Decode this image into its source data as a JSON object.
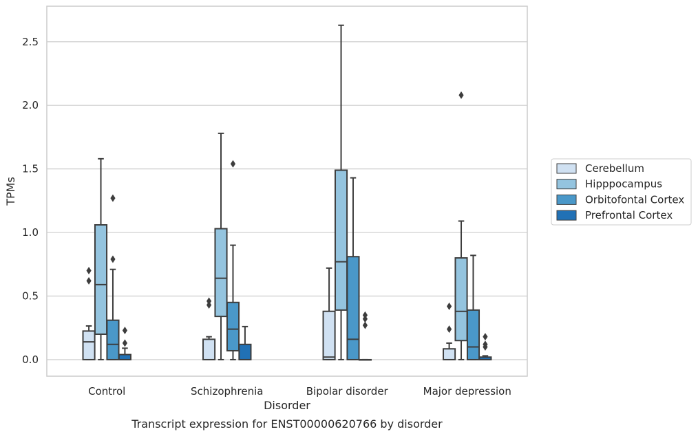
{
  "chart_data": {
    "type": "boxplot",
    "title": "Transcript expression for ENST00000620766 by disorder",
    "xlabel": "Disorder",
    "ylabel": "TPMs",
    "ylim": [
      -0.13,
      2.78
    ],
    "yticks": [
      "0.0",
      "0.5",
      "1.0",
      "1.5",
      "2.0",
      "2.5"
    ],
    "ytick_values": [
      0.0,
      0.5,
      1.0,
      1.5,
      2.0,
      2.5
    ],
    "categories": [
      "Control",
      "Schizophrenia",
      "Bipolar disorder",
      "Major depression"
    ],
    "grid": "horizontal",
    "legend_position": "right",
    "series": [
      {
        "name": "Cerebellum",
        "color": "#d0e1f2",
        "boxes": [
          {
            "whislo": 0.0,
            "q1": 0.0,
            "med": 0.14,
            "q3": 0.225,
            "whishi": 0.265,
            "fliers": [
              0.62,
              0.7
            ]
          },
          {
            "whislo": 0.0,
            "q1": 0.0,
            "med": 0.0,
            "q3": 0.16,
            "whishi": 0.18,
            "fliers": [
              0.43,
              0.46
            ]
          },
          {
            "whislo": 0.0,
            "q1": 0.0,
            "med": 0.02,
            "q3": 0.38,
            "whishi": 0.72,
            "fliers": []
          },
          {
            "whislo": 0.0,
            "q1": 0.0,
            "med": 0.0,
            "q3": 0.085,
            "whishi": 0.13,
            "fliers": [
              0.24,
              0.42
            ]
          }
        ]
      },
      {
        "name": "Hipppocampus",
        "color": "#94c4df",
        "boxes": [
          {
            "whislo": 0.0,
            "q1": 0.2,
            "med": 0.59,
            "q3": 1.06,
            "whishi": 1.58,
            "fliers": []
          },
          {
            "whislo": 0.0,
            "q1": 0.34,
            "med": 0.64,
            "q3": 1.03,
            "whishi": 1.78,
            "fliers": []
          },
          {
            "whislo": 0.0,
            "q1": 0.39,
            "med": 0.77,
            "q3": 1.49,
            "whishi": 2.63,
            "fliers": []
          },
          {
            "whislo": 0.0,
            "q1": 0.15,
            "med": 0.38,
            "q3": 0.8,
            "whishi": 1.09,
            "fliers": [
              2.08
            ]
          }
        ]
      },
      {
        "name": "Orbitofontal Cortex",
        "color": "#4a98c9",
        "boxes": [
          {
            "whislo": 0.0,
            "q1": 0.0,
            "med": 0.12,
            "q3": 0.31,
            "whishi": 0.71,
            "fliers": [
              0.79,
              1.27
            ]
          },
          {
            "whislo": 0.0,
            "q1": 0.07,
            "med": 0.24,
            "q3": 0.45,
            "whishi": 0.9,
            "fliers": [
              1.54
            ]
          },
          {
            "whislo": 0.0,
            "q1": 0.0,
            "med": 0.16,
            "q3": 0.81,
            "whishi": 1.43,
            "fliers": []
          },
          {
            "whislo": 0.0,
            "q1": 0.0,
            "med": 0.1,
            "q3": 0.39,
            "whishi": 0.82,
            "fliers": []
          }
        ]
      },
      {
        "name": "Prefrontal Cortex",
        "color": "#2171b5",
        "boxes": [
          {
            "whislo": 0.0,
            "q1": 0.0,
            "med": 0.0,
            "q3": 0.04,
            "whishi": 0.09,
            "fliers": [
              0.13,
              0.23
            ]
          },
          {
            "whislo": 0.0,
            "q1": 0.0,
            "med": 0.0,
            "q3": 0.12,
            "whishi": 0.26,
            "fliers": []
          },
          {
            "whislo": 0.0,
            "q1": 0.0,
            "med": 0.0,
            "q3": 0.0,
            "whishi": 0.0,
            "fliers": [
              0.27,
              0.32,
              0.35
            ]
          },
          {
            "whislo": 0.0,
            "q1": 0.0,
            "med": 0.0,
            "q3": 0.02,
            "whishi": 0.03,
            "fliers": [
              0.1,
              0.12,
              0.18
            ]
          }
        ]
      }
    ]
  }
}
